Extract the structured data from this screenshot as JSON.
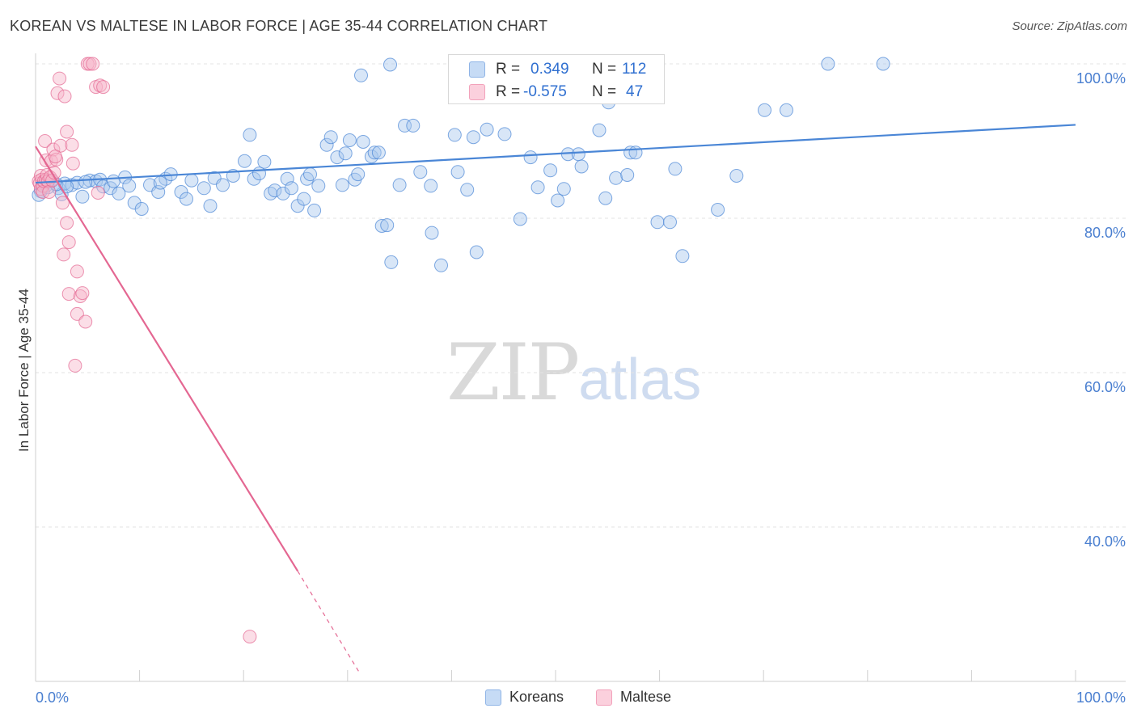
{
  "title": "KOREAN VS MALTESE IN LABOR FORCE | AGE 35-44 CORRELATION CHART",
  "source": "Source: ZipAtlas.com",
  "watermark": {
    "zip": "ZIP",
    "atlas": "atlas"
  },
  "stats": [
    {
      "r_label": "R =",
      "r_value": "0.349",
      "n_label": "N =",
      "n_value": "112",
      "color": "#a9c7ee"
    },
    {
      "r_label": "R =",
      "r_value": "-0.575",
      "n_label": "N =",
      "n_value": "47",
      "color": "#f6b6c9"
    }
  ],
  "legend": [
    {
      "label": "Koreans",
      "color": "#a9c7ee"
    },
    {
      "label": "Maltese",
      "color": "#f6b6c9"
    }
  ],
  "chart_data": {
    "type": "scatter",
    "title": "KOREAN VS MALTESE IN LABOR FORCE | AGE 35-44 CORRELATION CHART",
    "xlabel": "",
    "ylabel": "In Labor Force | Age 35-44",
    "xlim": [
      0,
      100
    ],
    "ylim": [
      20,
      101
    ],
    "x_tick_labels": [
      "0.0%",
      "100.0%"
    ],
    "y_ticks": [
      {
        "value": 40,
        "label": "40.0%"
      },
      {
        "value": 60,
        "label": "60.0%"
      },
      {
        "value": 80,
        "label": "80.0%"
      },
      {
        "value": 100,
        "label": "100.0%"
      }
    ],
    "grid": true,
    "series": [
      {
        "name": "Koreans",
        "color": "#4a86d6",
        "fill": "#a9c7ee",
        "trend": {
          "x": [
            0,
            100
          ],
          "y": [
            84.6,
            92.1
          ],
          "dashed_after": null
        },
        "points": [
          [
            0.5,
            83.5
          ],
          [
            0.8,
            84.6
          ],
          [
            1.0,
            84.2
          ],
          [
            1.5,
            84.9
          ],
          [
            2.2,
            83.9
          ],
          [
            2.5,
            83.1
          ],
          [
            2.8,
            84.5
          ],
          [
            3.5,
            84.3
          ],
          [
            4.0,
            84.6
          ],
          [
            4.5,
            82.8
          ],
          [
            5.2,
            84.9
          ],
          [
            5.8,
            84.8
          ],
          [
            6.2,
            85.0
          ],
          [
            6.5,
            84.1
          ],
          [
            7.2,
            83.9
          ],
          [
            8.0,
            83.2
          ],
          [
            8.6,
            85.3
          ],
          [
            9.0,
            84.2
          ],
          [
            9.5,
            82.0
          ],
          [
            10.2,
            81.2
          ],
          [
            11.0,
            84.3
          ],
          [
            11.8,
            83.4
          ],
          [
            12.5,
            85.1
          ],
          [
            13.0,
            85.7
          ],
          [
            14.0,
            83.4
          ],
          [
            14.5,
            82.5
          ],
          [
            15.0,
            84.9
          ],
          [
            16.2,
            83.9
          ],
          [
            16.8,
            81.6
          ],
          [
            17.2,
            85.2
          ],
          [
            18.0,
            84.3
          ],
          [
            19.0,
            85.5
          ],
          [
            20.1,
            87.4
          ],
          [
            20.6,
            90.8
          ],
          [
            21.0,
            85.1
          ],
          [
            21.5,
            85.8
          ],
          [
            22.0,
            87.3
          ],
          [
            22.6,
            83.2
          ],
          [
            23.0,
            83.6
          ],
          [
            23.8,
            83.2
          ],
          [
            24.2,
            85.1
          ],
          [
            24.6,
            83.9
          ],
          [
            25.2,
            81.6
          ],
          [
            25.8,
            82.5
          ],
          [
            26.1,
            85.1
          ],
          [
            26.4,
            85.7
          ],
          [
            27.2,
            84.2
          ],
          [
            28.0,
            89.5
          ],
          [
            28.4,
            90.5
          ],
          [
            29.0,
            87.9
          ],
          [
            29.5,
            84.3
          ],
          [
            29.8,
            88.4
          ],
          [
            30.2,
            90.1
          ],
          [
            30.7,
            85.0
          ],
          [
            31.0,
            85.7
          ],
          [
            31.5,
            89.9
          ],
          [
            32.3,
            88.0
          ],
          [
            32.6,
            88.5
          ],
          [
            33.0,
            88.5
          ],
          [
            31.3,
            98.5
          ],
          [
            33.3,
            79.0
          ],
          [
            33.8,
            79.1
          ],
          [
            34.2,
            74.3
          ],
          [
            34.1,
            99.9
          ],
          [
            35.5,
            92.0
          ],
          [
            36.3,
            92.0
          ],
          [
            37.0,
            86.0
          ],
          [
            38.0,
            84.2
          ],
          [
            38.1,
            78.1
          ],
          [
            39.0,
            73.9
          ],
          [
            40.3,
            90.8
          ],
          [
            40.6,
            86.0
          ],
          [
            41.5,
            83.7
          ],
          [
            42.1,
            90.5
          ],
          [
            42.4,
            75.6
          ],
          [
            43.4,
            91.5
          ],
          [
            45.1,
            90.9
          ],
          [
            46.6,
            79.9
          ],
          [
            47.6,
            87.9
          ],
          [
            48.3,
            84.0
          ],
          [
            49.5,
            86.2
          ],
          [
            50.2,
            82.3
          ],
          [
            50.8,
            83.8
          ],
          [
            51.2,
            88.3
          ],
          [
            52.2,
            88.3
          ],
          [
            52.5,
            86.7
          ],
          [
            54.2,
            91.4
          ],
          [
            54.8,
            82.6
          ],
          [
            55.1,
            95.0
          ],
          [
            55.8,
            85.2
          ],
          [
            56.9,
            85.6
          ],
          [
            57.2,
            88.5
          ],
          [
            57.7,
            88.5
          ],
          [
            59.8,
            79.5
          ],
          [
            61.0,
            79.5
          ],
          [
            61.5,
            86.4
          ],
          [
            62.2,
            75.1
          ],
          [
            65.6,
            81.1
          ],
          [
            67.4,
            85.5
          ],
          [
            70.1,
            94.0
          ],
          [
            72.2,
            94.0
          ],
          [
            76.2,
            100.0
          ],
          [
            81.5,
            100.0
          ],
          [
            0.3,
            83.0
          ],
          [
            1.2,
            84.0
          ],
          [
            2.0,
            84.4
          ],
          [
            3.0,
            84.1
          ],
          [
            4.8,
            84.7
          ],
          [
            7.5,
            84.8
          ],
          [
            12.0,
            84.6
          ],
          [
            26.8,
            81.0
          ],
          [
            35.0,
            84.3
          ]
        ]
      },
      {
        "name": "Maltese",
        "color": "#e46792",
        "fill": "#f6b6c9",
        "trend": {
          "x": [
            0,
            25.2
          ],
          "y": [
            89.3,
            34.3
          ],
          "dashed_to": {
            "x": 31.2,
            "y": 21.0
          }
        },
        "points": [
          [
            0.3,
            84.8
          ],
          [
            0.4,
            84.5
          ],
          [
            0.5,
            85.5
          ],
          [
            0.5,
            83.8
          ],
          [
            0.6,
            85.0
          ],
          [
            0.7,
            84.2
          ],
          [
            0.7,
            83.4
          ],
          [
            0.8,
            84.8
          ],
          [
            0.9,
            90.0
          ],
          [
            1.0,
            87.5
          ],
          [
            1.0,
            85.0
          ],
          [
            1.1,
            85.6
          ],
          [
            1.2,
            84.8
          ],
          [
            1.3,
            83.4
          ],
          [
            1.4,
            85.3
          ],
          [
            1.5,
            87.4
          ],
          [
            1.6,
            84.9
          ],
          [
            1.7,
            88.9
          ],
          [
            1.8,
            85.9
          ],
          [
            2.0,
            87.6
          ],
          [
            2.1,
            96.2
          ],
          [
            2.3,
            98.1
          ],
          [
            2.4,
            89.4
          ],
          [
            2.6,
            82.0
          ],
          [
            2.7,
            75.3
          ],
          [
            2.8,
            95.8
          ],
          [
            3.0,
            79.4
          ],
          [
            3.0,
            91.2
          ],
          [
            3.2,
            70.2
          ],
          [
            3.2,
            76.9
          ],
          [
            3.5,
            89.5
          ],
          [
            3.6,
            87.1
          ],
          [
            3.8,
            60.9
          ],
          [
            4.0,
            67.6
          ],
          [
            4.0,
            73.1
          ],
          [
            4.3,
            69.9
          ],
          [
            4.5,
            70.3
          ],
          [
            4.8,
            66.6
          ],
          [
            5.0,
            100.0
          ],
          [
            5.2,
            100.0
          ],
          [
            5.5,
            100.0
          ],
          [
            5.8,
            97.0
          ],
          [
            6.0,
            83.3
          ],
          [
            6.2,
            97.2
          ],
          [
            6.5,
            97.0
          ],
          [
            20.6,
            25.8
          ],
          [
            1.9,
            88.0
          ]
        ]
      }
    ]
  }
}
